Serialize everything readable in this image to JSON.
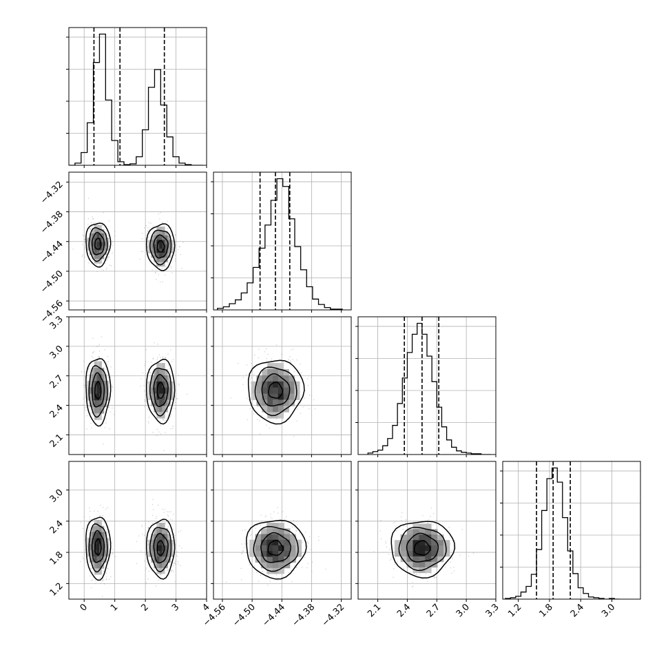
{
  "chart_data": {
    "type": "corner",
    "n_params": 4,
    "axes": [
      {
        "range": [
          -0.5,
          4.0
        ],
        "ticks": [
          0,
          1,
          2,
          3,
          4
        ],
        "tick_labels": [
          "0",
          "1",
          "2",
          "3",
          "4"
        ]
      },
      {
        "range": [
          -4.578,
          -4.3
        ],
        "ticks": [
          -4.56,
          -4.5,
          -4.44,
          -4.38,
          -4.32
        ],
        "tick_labels": [
          "−4.56",
          "−4.50",
          "−4.44",
          "−4.38",
          "−4.32"
        ]
      },
      {
        "range": [
          1.9,
          3.3
        ],
        "ticks": [
          2.1,
          2.4,
          2.7,
          3.0,
          3.3
        ],
        "tick_labels": [
          "2.1",
          "2.4",
          "2.7",
          "3.0",
          "3.3"
        ]
      },
      {
        "range": [
          0.9,
          3.55
        ],
        "ticks": [
          1.2,
          1.8,
          2.4,
          3.0
        ],
        "tick_labels": [
          "1.2",
          "1.8",
          "2.4",
          "3.0"
        ]
      }
    ],
    "histograms": [
      {
        "param": 0,
        "bin_edges": [
          -0.5,
          -0.3,
          -0.1,
          0.1,
          0.3,
          0.5,
          0.7,
          0.9,
          1.1,
          1.3,
          1.5,
          1.7,
          1.9,
          2.1,
          2.3,
          2.5,
          2.7,
          2.9,
          3.1,
          3.3,
          3.5,
          3.7,
          3.9
        ],
        "counts": [
          0,
          3,
          18,
          60,
          145,
          185,
          92,
          35,
          5,
          1,
          2,
          12,
          50,
          110,
          135,
          85,
          40,
          12,
          3,
          1,
          0,
          0
        ],
        "quantiles": [
          0.32,
          1.17,
          2.62
        ]
      },
      {
        "param": 1,
        "bin_edges": [
          -4.57,
          -4.558,
          -4.546,
          -4.534,
          -4.522,
          -4.51,
          -4.498,
          -4.486,
          -4.474,
          -4.462,
          -4.45,
          -4.438,
          -4.426,
          -4.414,
          -4.402,
          -4.39,
          -4.378,
          -4.366,
          -4.354,
          -4.342,
          -4.33,
          -4.318
        ],
        "counts": [
          2,
          4,
          8,
          13,
          22,
          35,
          55,
          80,
          110,
          142,
          170,
          160,
          118,
          82,
          52,
          30,
          14,
          7,
          3,
          1,
          1
        ],
        "quantiles": [
          -4.484,
          -4.453,
          -4.424
        ]
      },
      {
        "param": 2,
        "bin_edges": [
          2.0,
          2.05,
          2.1,
          2.15,
          2.2,
          2.25,
          2.3,
          2.35,
          2.4,
          2.45,
          2.5,
          2.55,
          2.6,
          2.65,
          2.7,
          2.75,
          2.8,
          2.85,
          2.9,
          2.95,
          3.0,
          3.05,
          3.1,
          3.15,
          3.2,
          3.25
        ],
        "counts": [
          2,
          4,
          6,
          12,
          22,
          40,
          70,
          105,
          140,
          165,
          180,
          165,
          135,
          100,
          65,
          38,
          20,
          10,
          5,
          3,
          2,
          1,
          1,
          0,
          0
        ],
        "quantiles": [
          2.37,
          2.55,
          2.72
        ]
      },
      {
        "param": 3,
        "bin_edges": [
          0.95,
          1.05,
          1.15,
          1.25,
          1.35,
          1.45,
          1.55,
          1.65,
          1.75,
          1.85,
          1.95,
          2.05,
          2.15,
          2.25,
          2.35,
          2.45,
          2.55,
          2.65,
          2.75,
          2.85,
          2.95,
          3.05,
          3.15
        ],
        "counts": [
          1,
          2,
          4,
          10,
          18,
          35,
          70,
          125,
          170,
          185,
          165,
          115,
          68,
          36,
          16,
          8,
          3,
          2,
          1,
          0,
          1,
          0
        ],
        "quantiles": [
          1.55,
          1.87,
          2.2
        ]
      }
    ],
    "pairs": [
      {
        "x": 0,
        "y": 1,
        "blobs": [
          {
            "cx": 0.45,
            "cy": -4.445,
            "sx": 0.2,
            "sy": 0.022
          },
          {
            "cx": 2.5,
            "cy": -4.45,
            "sx": 0.23,
            "sy": 0.023
          }
        ]
      },
      {
        "x": 0,
        "y": 2,
        "blobs": [
          {
            "cx": 0.45,
            "cy": 2.55,
            "sx": 0.2,
            "sy": 0.17
          },
          {
            "cx": 2.5,
            "cy": 2.55,
            "sx": 0.23,
            "sy": 0.16
          }
        ]
      },
      {
        "x": 1,
        "y": 2,
        "blobs": [
          {
            "cx": -4.453,
            "cy": 2.55,
            "sx": 0.028,
            "sy": 0.16
          }
        ]
      },
      {
        "x": 0,
        "y": 3,
        "blobs": [
          {
            "cx": 0.45,
            "cy": 1.9,
            "sx": 0.2,
            "sy": 0.3
          },
          {
            "cx": 2.5,
            "cy": 1.88,
            "sx": 0.23,
            "sy": 0.28
          }
        ]
      },
      {
        "x": 1,
        "y": 3,
        "blobs": [
          {
            "cx": -4.453,
            "cy": 1.88,
            "sx": 0.03,
            "sy": 0.28
          }
        ]
      },
      {
        "x": 2,
        "y": 3,
        "blobs": [
          {
            "cx": 2.55,
            "cy": 1.88,
            "sx": 0.16,
            "sy": 0.27
          }
        ]
      }
    ],
    "grid": true,
    "title": "",
    "xlabel": "",
    "ylabel": ""
  }
}
